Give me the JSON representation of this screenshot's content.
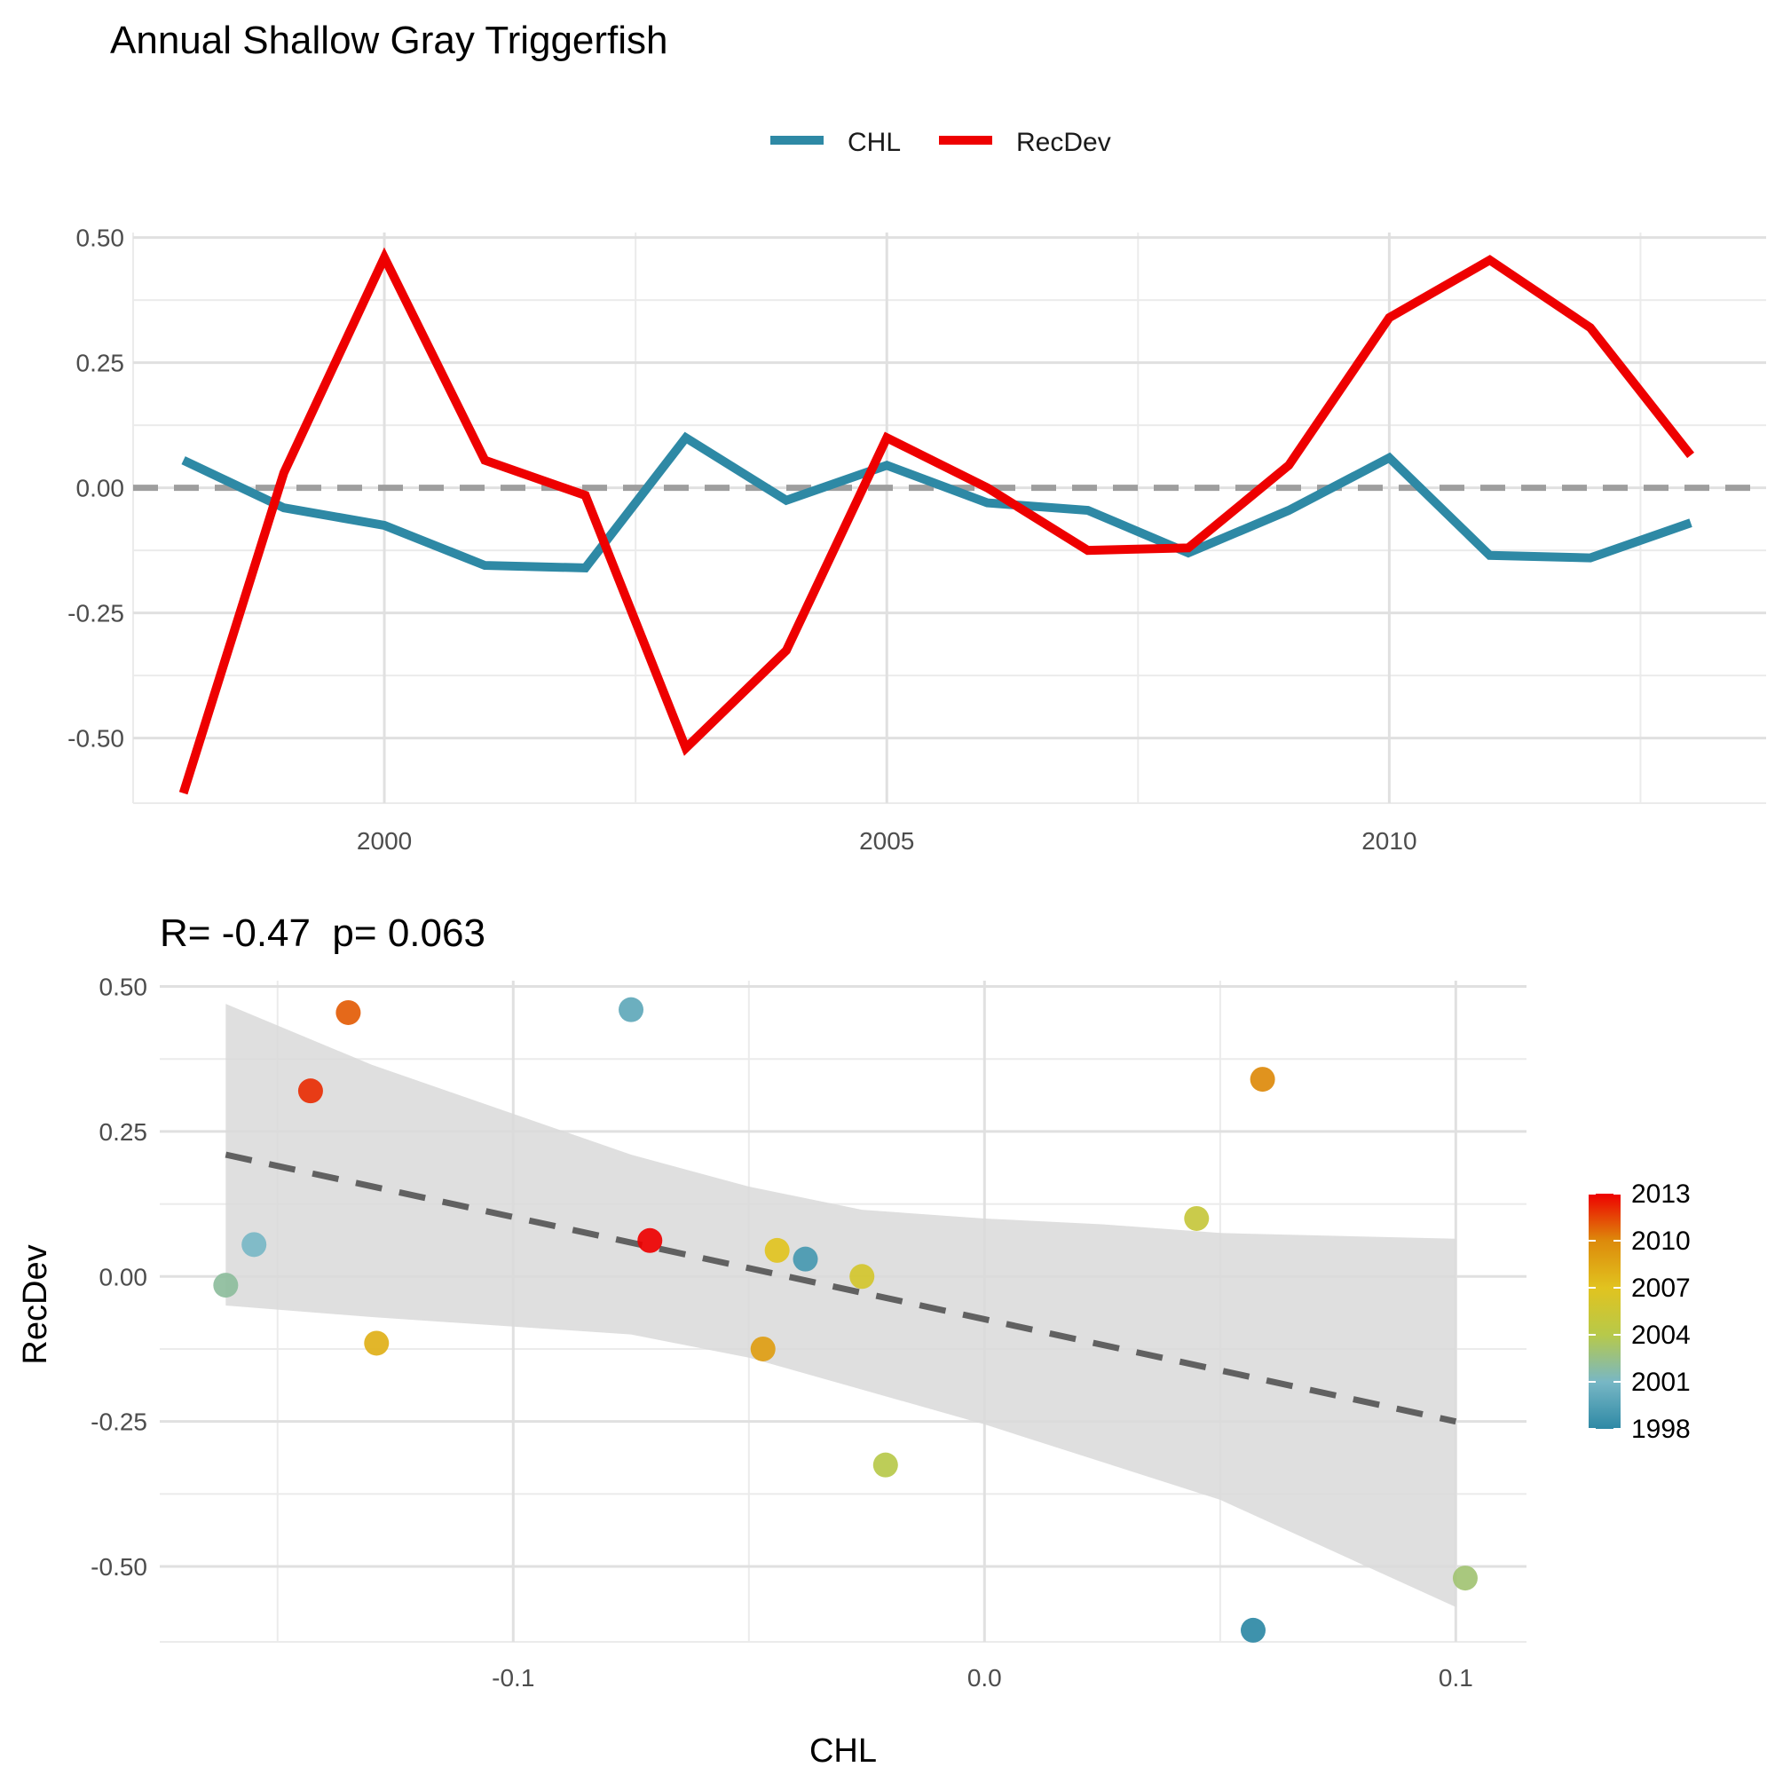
{
  "title": "Annual Shallow Gray Triggerfish",
  "legend": {
    "items": [
      {
        "label": "CHL",
        "color": "#2E89A5"
      },
      {
        "label": "RecDev",
        "color": "#EE0000"
      }
    ]
  },
  "chart_data": [
    {
      "type": "line",
      "title": "",
      "xlabel": "",
      "ylabel": "",
      "xlim": [
        1997.5,
        2013.75
      ],
      "ylim": [
        -0.63,
        0.51
      ],
      "x_ticks": [
        2000,
        2005,
        2010
      ],
      "y_ticks": [
        -0.5,
        -0.25,
        0.0,
        0.25,
        0.5
      ],
      "y_tick_labels": [
        "-0.50",
        "-0.25",
        "0.00",
        "0.25",
        "0.50"
      ],
      "x_tick_labels": [
        "2000",
        "2005",
        "2010"
      ],
      "x": [
        1998,
        1999,
        2000,
        2001,
        2002,
        2003,
        2004,
        2005,
        2006,
        2007,
        2008,
        2009,
        2010,
        2011,
        2012,
        2013
      ],
      "series": [
        {
          "name": "CHL",
          "color": "#2E89A5",
          "values": [
            0.055,
            -0.04,
            -0.075,
            -0.155,
            -0.16,
            0.1,
            -0.025,
            0.045,
            -0.03,
            -0.045,
            -0.13,
            -0.045,
            0.06,
            -0.135,
            -0.14,
            -0.07
          ]
        },
        {
          "name": "RecDev",
          "color": "#EE0000",
          "values": [
            -0.61,
            0.03,
            0.46,
            0.055,
            -0.015,
            -0.52,
            -0.325,
            0.1,
            0.0,
            -0.125,
            -0.12,
            0.045,
            0.34,
            0.455,
            0.32,
            0.065
          ]
        }
      ],
      "reference_line": {
        "y": 0.0,
        "style": "dashed",
        "color": "#9E9E9E"
      },
      "grid": true
    },
    {
      "type": "scatter",
      "title": "R= -0.47  p= 0.063",
      "xlabel": "CHL",
      "ylabel": "RecDev",
      "xlim": [
        -0.175,
        0.115
      ],
      "ylim": [
        -0.63,
        0.51
      ],
      "x_ticks": [
        -0.1,
        0.0,
        0.1
      ],
      "x_tick_labels": [
        "-0.1",
        "0.0",
        "0.1"
      ],
      "y_ticks": [
        -0.5,
        -0.25,
        0.0,
        0.25,
        0.5
      ],
      "y_tick_labels": [
        "-0.50",
        "-0.25",
        "0.00",
        "0.25",
        "0.50"
      ],
      "points": [
        {
          "year": 1998,
          "x": 0.057,
          "y": -0.61
        },
        {
          "year": 1999,
          "x": -0.038,
          "y": 0.03
        },
        {
          "year": 2000,
          "x": -0.075,
          "y": 0.46
        },
        {
          "year": 2001,
          "x": -0.155,
          "y": 0.055
        },
        {
          "year": 2002,
          "x": -0.161,
          "y": -0.015
        },
        {
          "year": 2003,
          "x": 0.102,
          "y": -0.52
        },
        {
          "year": 2004,
          "x": -0.021,
          "y": -0.325
        },
        {
          "year": 2005,
          "x": 0.045,
          "y": 0.1
        },
        {
          "year": 2006,
          "x": -0.026,
          "y": 0.0
        },
        {
          "year": 2007,
          "x": -0.044,
          "y": 0.045
        },
        {
          "year": 2008,
          "x": -0.129,
          "y": -0.115
        },
        {
          "year": 2009,
          "x": -0.047,
          "y": -0.125
        },
        {
          "year": 2010,
          "x": 0.059,
          "y": 0.34
        },
        {
          "year": 2011,
          "x": -0.135,
          "y": 0.455
        },
        {
          "year": 2012,
          "x": -0.143,
          "y": 0.32
        },
        {
          "year": 2013,
          "x": -0.071,
          "y": 0.062
        }
      ],
      "fit_line": {
        "x": [
          -0.161,
          0.1
        ],
        "y": [
          0.21,
          -0.25
        ],
        "style": "dashed",
        "color": "#616161"
      },
      "confidence_band": {
        "x": [
          -0.161,
          -0.13,
          -0.075,
          -0.05,
          -0.026,
          0.0,
          0.025,
          0.05,
          0.1
        ],
        "upper": [
          0.47,
          0.365,
          0.21,
          0.155,
          0.115,
          0.1,
          0.09,
          0.075,
          0.065
        ],
        "lower": [
          -0.05,
          -0.07,
          -0.1,
          -0.14,
          -0.195,
          -0.255,
          -0.32,
          -0.385,
          -0.57
        ],
        "color": "#D9D9D9"
      },
      "colorbar": {
        "ticks": [
          1998,
          2001,
          2004,
          2007,
          2010,
          2013
        ],
        "range": [
          1998,
          2013
        ],
        "stops": [
          "#2E89A5",
          "#78B7C5",
          "#B7C94A",
          "#E1C31F",
          "#DD8A0B",
          "#EE0000"
        ]
      },
      "grid": true
    }
  ]
}
